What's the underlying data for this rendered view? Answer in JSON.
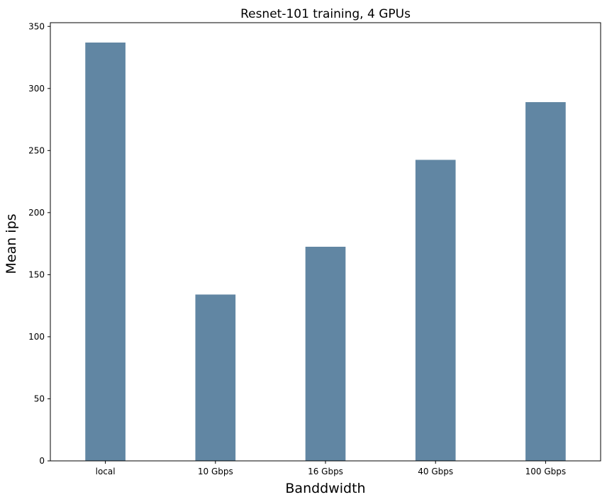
{
  "chart_data": {
    "type": "bar",
    "title": "Resnet-101 training, 4 GPUs",
    "xlabel": "Banddwidth",
    "ylabel": "Mean ips",
    "categories": [
      "local",
      "10 Gbps",
      "16 Gbps",
      "40 Gbps",
      "100 Gbps"
    ],
    "values": [
      337,
      134,
      172.5,
      242.5,
      289
    ],
    "ylim": [
      0,
      353
    ],
    "yticks": [
      0,
      50,
      100,
      150,
      200,
      250,
      300,
      350
    ],
    "grid": false,
    "bar_color": "#6186a3"
  }
}
